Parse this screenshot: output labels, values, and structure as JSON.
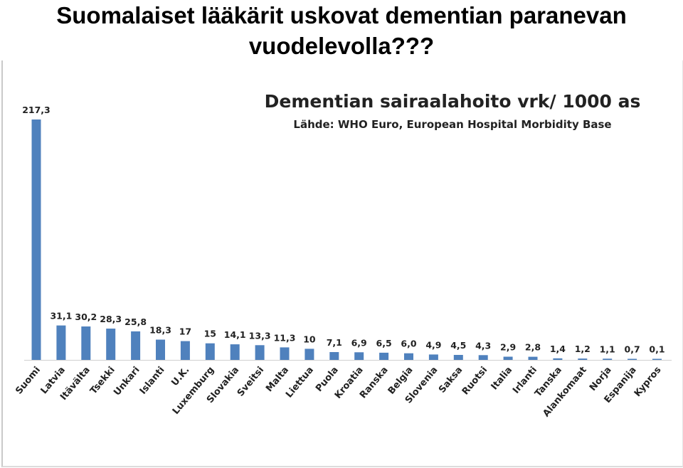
{
  "slide": {
    "title_line1": "Suomalaiset lääkärit uskovat dementian paranevan",
    "title_line2": "vuodelevolla???"
  },
  "chart_data": {
    "type": "bar",
    "title": "Dementian sairaalahoito vrk/ 1000 as",
    "subtitle": "Lähde: WHO Euro, European Hospital Morbidity Base",
    "categories": [
      "Suomi",
      "Latvia",
      "Itävälta",
      "Tsekki",
      "Unkari",
      "Islanti",
      "U.K.",
      "Luxemburg",
      "Slovakia",
      "Sveitsi",
      "Malta",
      "Liettua",
      "Puola",
      "Kroatia",
      "Ranska",
      "Belgia",
      "Slovenia",
      "Saksa",
      "Ruotsi",
      "Italia",
      "Irlanti",
      "Tanska",
      "Alankomaat",
      "Norja",
      "Espanija",
      "Kypros"
    ],
    "values": [
      217.3,
      31.1,
      30.2,
      28.3,
      25.8,
      18.3,
      17,
      15,
      14.1,
      13.3,
      11.3,
      10,
      7.1,
      6.9,
      6.5,
      6.0,
      4.9,
      4.5,
      4.3,
      2.9,
      2.8,
      1.4,
      1.2,
      1.1,
      0.7,
      0.1
    ],
    "value_labels": [
      "217,3",
      "31,1",
      "30,2",
      "28,3",
      "25,8",
      "18,3",
      "17",
      "15",
      "14,1",
      "13,3",
      "11,3",
      "10",
      "7,1",
      "6,9",
      "6,5",
      "6,0",
      "4,9",
      "4,5",
      "4,3",
      "2,9",
      "2,8",
      "1,4",
      "1,2",
      "1,1",
      "0,7",
      "0,1"
    ],
    "ylim": [
      0,
      217.3
    ],
    "bar_color": "#4f81bd",
    "grid": false,
    "legend": false
  }
}
